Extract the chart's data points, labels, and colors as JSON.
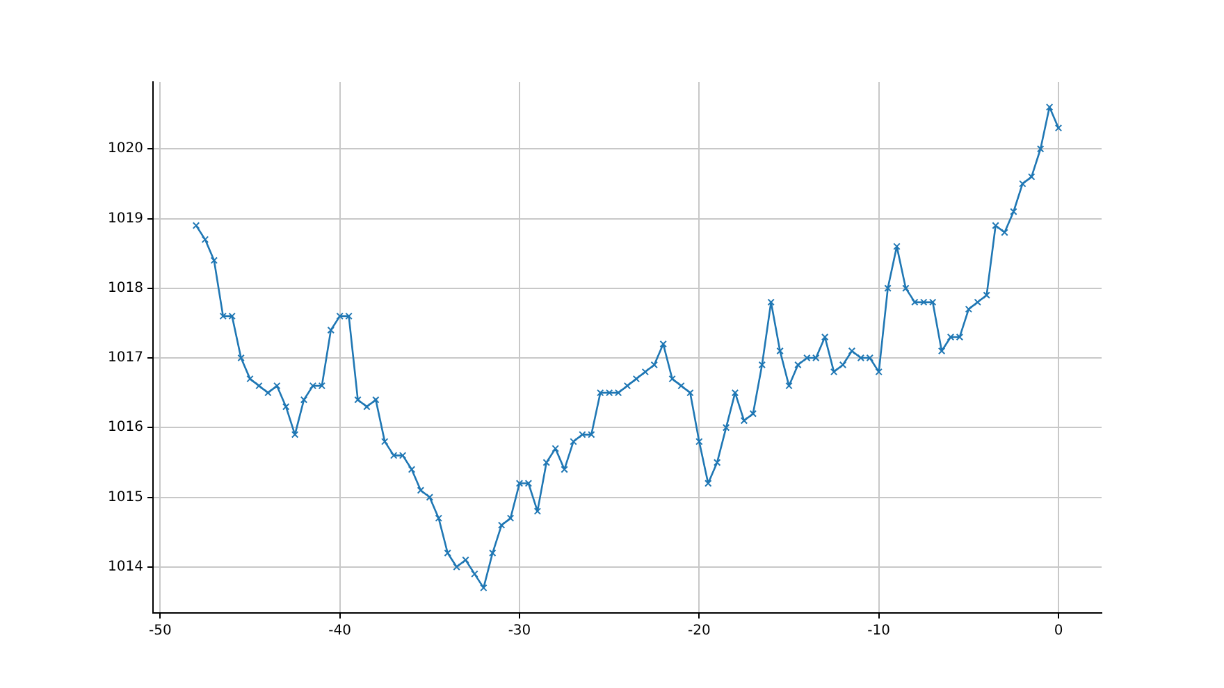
{
  "chart_data": {
    "type": "line",
    "x": [
      -48,
      -47.5,
      -47,
      -46.5,
      -46,
      -45.5,
      -45,
      -44.5,
      -44,
      -43.5,
      -43,
      -42.5,
      -42,
      -41.5,
      -41,
      -40.5,
      -40,
      -39.5,
      -39,
      -38.5,
      -38,
      -37.5,
      -37,
      -36.5,
      -36,
      -35.5,
      -35,
      -34.5,
      -34,
      -33.5,
      -33,
      -32.5,
      -32,
      -31.5,
      -31,
      -30.5,
      -30,
      -29.5,
      -29,
      -28.5,
      -28,
      -27.5,
      -27,
      -26.5,
      -26,
      -25.5,
      -25,
      -24.5,
      -24,
      -23.5,
      -23,
      -22.5,
      -22,
      -21.5,
      -21,
      -20.5,
      -20,
      -19.5,
      -19,
      -18.5,
      -18,
      -17.5,
      -17,
      -16.5,
      -16,
      -15.5,
      -15,
      -14.5,
      -14,
      -13.5,
      -13,
      -12.5,
      -12,
      -11.5,
      -11,
      -10.5,
      -10,
      -9.5,
      -9,
      -8.5,
      -8,
      -7.5,
      -7,
      -6.5,
      -6,
      -5.5,
      -5,
      -4.5,
      -4,
      -3.5,
      -3,
      -2.5,
      -2,
      -1.5,
      -1,
      -0.5,
      0
    ],
    "series": [
      {
        "color": "#1f77b4",
        "values": [
          1018.9,
          1018.7,
          1018.4,
          1017.6,
          1017.6,
          1017.0,
          1016.7,
          1016.6,
          1016.5,
          1016.6,
          1016.3,
          1015.9,
          1016.4,
          1016.6,
          1016.6,
          1017.4,
          1017.6,
          1017.6,
          1016.4,
          1016.3,
          1016.4,
          1015.8,
          1015.6,
          1015.6,
          1015.4,
          1015.1,
          1015.0,
          1014.7,
          1014.2,
          1014.0,
          1014.1,
          1013.9,
          1013.7,
          1014.2,
          1014.6,
          1014.7,
          1015.2,
          1015.2,
          1014.8,
          1015.5,
          1015.7,
          1015.4,
          1015.8,
          1015.9,
          1015.9,
          1016.5,
          1016.5,
          1016.5,
          1016.6,
          1016.7,
          1016.8,
          1016.9,
          1017.2,
          1016.7,
          1016.6,
          1016.5,
          1015.8,
          1015.2,
          1015.5,
          1016.0,
          1016.5,
          1016.1,
          1016.2,
          1016.9,
          1017.8,
          1017.1,
          1016.6,
          1016.9,
          1017.0,
          1017.0,
          1017.3,
          1016.8,
          1016.9,
          1017.1,
          1017.0,
          1017.0,
          1016.8,
          1018.0,
          1018.6,
          1018.0,
          1017.8,
          1017.8,
          1017.8,
          1017.1,
          1017.3,
          1017.3,
          1017.7,
          1017.8,
          1017.9,
          1018.9,
          1018.8,
          1019.1,
          1019.5,
          1019.6,
          1020.0,
          1020.6,
          1020.3
        ]
      }
    ],
    "xlim": [
      -50.4,
      2.4
    ],
    "xticks": [
      -50,
      -40,
      -30,
      -20,
      -10,
      0
    ],
    "ylim": [
      1013.34,
      1020.96
    ],
    "yticks": [
      1014,
      1015,
      1016,
      1017,
      1018,
      1019,
      1020
    ],
    "grid": true,
    "marker": "cross",
    "line_style": "solid",
    "legend": false
  }
}
